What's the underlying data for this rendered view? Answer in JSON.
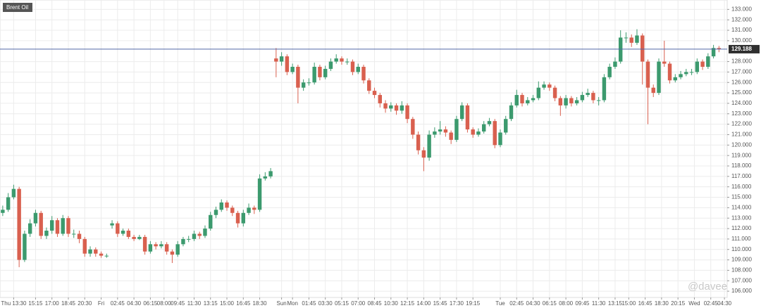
{
  "chart_data": {
    "type": "candlestick",
    "title": "Brent Oil",
    "watermark": "@davee",
    "up_color": "#3c9a6e",
    "down_color": "#d9604f",
    "last_price": 129.188,
    "last_price_color": "#5066a6",
    "grid": true,
    "ylim": [
      105.4,
      133.9
    ],
    "yticks": [
      {
        "value": 106,
        "label": "106.000"
      },
      {
        "value": 107,
        "label": "107.000"
      },
      {
        "value": 108,
        "label": "108.000"
      },
      {
        "value": 109,
        "label": "109.000"
      },
      {
        "value": 110,
        "label": "110.000"
      },
      {
        "value": 111,
        "label": "111.000"
      },
      {
        "value": 112,
        "label": "112.000"
      },
      {
        "value": 113,
        "label": "113.000"
      },
      {
        "value": 114,
        "label": "114.000"
      },
      {
        "value": 115,
        "label": "115.000"
      },
      {
        "value": 116,
        "label": "116.000"
      },
      {
        "value": 117,
        "label": "117.000"
      },
      {
        "value": 118,
        "label": "118.000"
      },
      {
        "value": 119,
        "label": "119.000"
      },
      {
        "value": 120,
        "label": "120.000"
      },
      {
        "value": 121,
        "label": "121.000"
      },
      {
        "value": 122,
        "label": "122.000"
      },
      {
        "value": 123,
        "label": "123.000"
      },
      {
        "value": 124,
        "label": "124.000"
      },
      {
        "value": 125,
        "label": "125.000"
      },
      {
        "value": 126,
        "label": "126.000"
      },
      {
        "value": 127,
        "label": "127.000"
      },
      {
        "value": 128,
        "label": "128.000"
      },
      {
        "value": 130,
        "label": "130.000"
      },
      {
        "value": 131,
        "label": "131.000"
      },
      {
        "value": 132,
        "label": "132.000"
      },
      {
        "value": 133,
        "label": "133.000"
      }
    ],
    "xlim": [
      -0.5,
      132.5
    ],
    "xticks": [
      {
        "value": 2,
        "label": "Thu 13:30"
      },
      {
        "value": 6,
        "label": "15:15"
      },
      {
        "value": 9,
        "label": "17:00"
      },
      {
        "value": 12,
        "label": "18:45"
      },
      {
        "value": 15,
        "label": "20:30"
      },
      {
        "value": 18,
        "label": "Fri"
      },
      {
        "value": 21,
        "label": "02:45"
      },
      {
        "value": 24,
        "label": "04:30"
      },
      {
        "value": 27,
        "label": "06:15"
      },
      {
        "value": 29.5,
        "label": "08:00"
      },
      {
        "value": 32,
        "label": "09:45"
      },
      {
        "value": 35,
        "label": "11:30"
      },
      {
        "value": 38,
        "label": "13:15"
      },
      {
        "value": 41,
        "label": "15:00"
      },
      {
        "value": 44,
        "label": "16:45"
      },
      {
        "value": 47,
        "label": "18:30"
      },
      {
        "value": 51,
        "label": "Sun"
      },
      {
        "value": 53,
        "label": "Mon"
      },
      {
        "value": 56,
        "label": "01:45"
      },
      {
        "value": 59,
        "label": "03:30"
      },
      {
        "value": 62,
        "label": "05:15"
      },
      {
        "value": 65,
        "label": "07:00"
      },
      {
        "value": 68,
        "label": "08:45"
      },
      {
        "value": 71,
        "label": "10:30"
      },
      {
        "value": 74,
        "label": "12:15"
      },
      {
        "value": 77,
        "label": "14:00"
      },
      {
        "value": 80,
        "label": "15:45"
      },
      {
        "value": 83,
        "label": "17:30"
      },
      {
        "value": 86,
        "label": "19:15"
      },
      {
        "value": 91,
        "label": "Tue"
      },
      {
        "value": 94,
        "label": "02:45"
      },
      {
        "value": 97,
        "label": "04:30"
      },
      {
        "value": 100,
        "label": "06:15"
      },
      {
        "value": 103,
        "label": "08:00"
      },
      {
        "value": 106,
        "label": "09:45"
      },
      {
        "value": 109,
        "label": "11:30"
      },
      {
        "value": 112,
        "label": "13:15"
      },
      {
        "value": 114.5,
        "label": "15:00"
      },
      {
        "value": 117.5,
        "label": "16:45"
      },
      {
        "value": 120.5,
        "label": "18:30"
      },
      {
        "value": 123.5,
        "label": "20:15"
      },
      {
        "value": 126.5,
        "label": "Wed"
      },
      {
        "value": 129.5,
        "label": "02:45"
      },
      {
        "value": 132,
        "label": "04:30"
      }
    ],
    "open": [
      113.5,
      113.8,
      115,
      115.8,
      109,
      111.5,
      112.5,
      113.5,
      111.3,
      111.8,
      112.8,
      111.5,
      113,
      111.5,
      111.5,
      111,
      109.6,
      110,
      109.6,
      109.4,
      112.3,
      112.5,
      111.5,
      111.8,
      111.2,
      111,
      111.2,
      109.8,
      110.5,
      110.3,
      110.5,
      109.8,
      109.5,
      110.5,
      111,
      111,
      111.5,
      111.3,
      112,
      113.3,
      113.8,
      114.5,
      114,
      113.5,
      112.5,
      113.5,
      114,
      113.8,
      116.8,
      117,
      128.3,
      128,
      128.5,
      127,
      127.5,
      125.5,
      126,
      126,
      127.5,
      126.5,
      127.3,
      128,
      128.3,
      128,
      128,
      127,
      127.5,
      126.2,
      125.2,
      124.8,
      124,
      123.5,
      123.8,
      123.3,
      123.8,
      122.5,
      121,
      119.5,
      118.8,
      121,
      121.3,
      121.5,
      121.2,
      120.5,
      122.5,
      123.8,
      121.5,
      121,
      121.3,
      122,
      122.3,
      120,
      121.2,
      122.5,
      123.8,
      124.8,
      124,
      124.3,
      124.5,
      125.5,
      125.8,
      125.5,
      124.5,
      123.8,
      124.5,
      124,
      124.3,
      124.8,
      125,
      124.3,
      124.3,
      126.5,
      127.5,
      128,
      130.3,
      130.3,
      129.8,
      130.5,
      128,
      125.5,
      125,
      128,
      127.8,
      126.2,
      126.5,
      126.8,
      127,
      127,
      128,
      127.5,
      128.5,
      129.3
    ],
    "high": [
      114.2,
      115.4,
      116.2,
      116,
      111.8,
      112.9,
      113.8,
      113.7,
      112.1,
      113.2,
      113,
      113.3,
      113.2,
      111.9,
      111.8,
      111.2,
      110.3,
      110.2,
      109.8,
      109.6,
      112.8,
      112.7,
      112,
      112,
      111.4,
      111.4,
      111.4,
      110.8,
      110.7,
      110.8,
      110.7,
      110,
      110.8,
      111.2,
      111.3,
      111.8,
      111.7,
      112.3,
      113.6,
      114.1,
      114.8,
      114.7,
      114.2,
      113.7,
      113.8,
      114.4,
      114.2,
      117.2,
      117.4,
      117.8,
      129.3,
      128.9,
      128.7,
      127.8,
      127.7,
      126.3,
      126.4,
      127.9,
      127.7,
      127.6,
      128.3,
      128.7,
      128.5,
      128.3,
      128.2,
      127.8,
      127.7,
      126.4,
      125.5,
      125,
      124.3,
      124.1,
      124,
      124.2,
      124,
      122.7,
      121.3,
      119.8,
      121.4,
      121.7,
      122.3,
      121.8,
      121.4,
      122.8,
      124.1,
      124,
      121.7,
      121.6,
      122.3,
      122.6,
      122.5,
      121.5,
      122.8,
      124.1,
      125.3,
      125,
      124.6,
      124.8,
      126.1,
      126.1,
      126,
      125.7,
      124.7,
      124.8,
      124.7,
      124.6,
      125.1,
      125.4,
      125.2,
      124.6,
      126.8,
      127.8,
      128.4,
      131,
      130.8,
      130.6,
      131.1,
      130.7,
      128.2,
      125.8,
      128.3,
      130,
      128,
      126.8,
      127.1,
      127.3,
      127.3,
      128.3,
      128.2,
      128.8,
      129.6,
      129.5
    ],
    "low": [
      113.2,
      113.6,
      114.8,
      108.3,
      108.8,
      111.2,
      112.2,
      111,
      111,
      111.5,
      111.2,
      111.3,
      111.2,
      111.1,
      110.6,
      109.3,
      109.3,
      109.3,
      109.2,
      109.2,
      112,
      111.2,
      111.3,
      111,
      110.8,
      110.9,
      109.5,
      109.6,
      110,
      110.1,
      109.5,
      108.7,
      109.3,
      110.3,
      110.7,
      110.8,
      111,
      111.1,
      111.8,
      113,
      113.6,
      113.7,
      113.2,
      112.1,
      112.2,
      113.3,
      113.4,
      113.6,
      116.6,
      116.8,
      126.5,
      127.6,
      126.7,
      126.8,
      124,
      125.2,
      125.7,
      125.8,
      126.2,
      126.3,
      127.1,
      127.8,
      127.7,
      127.7,
      126.7,
      126.8,
      125.9,
      124.9,
      124.5,
      123.6,
      123.1,
      123.2,
      122.9,
      123,
      122.1,
      120.6,
      119.1,
      117.5,
      118.5,
      120.7,
      121,
      120.8,
      120.1,
      120.3,
      122.3,
      121.2,
      120.7,
      120.8,
      121.1,
      121.8,
      119.7,
      119.8,
      121,
      122.3,
      123.6,
      123.7,
      123.8,
      124.1,
      124.3,
      125.3,
      125.2,
      124.2,
      122.8,
      123.5,
      123.7,
      123.8,
      124.1,
      124.6,
      124,
      123.8,
      124.1,
      126.3,
      127.3,
      127.8,
      129.8,
      129.4,
      129.6,
      125.8,
      122,
      124.6,
      124.8,
      127.5,
      125.9,
      126,
      126.3,
      126.6,
      126.7,
      126.8,
      127.2,
      127.3,
      128.3,
      128.9
    ],
    "close": [
      113.8,
      115,
      115.8,
      109,
      111.5,
      112.5,
      113.5,
      111.3,
      111.8,
      112.8,
      111.5,
      113,
      111.5,
      111.5,
      111,
      109.6,
      110,
      109.6,
      109.4,
      109.4,
      112.5,
      111.5,
      111.8,
      111.2,
      111,
      111.2,
      109.8,
      110.5,
      110.3,
      110.5,
      109.8,
      109.5,
      110.5,
      111,
      111,
      111.5,
      111.3,
      112,
      113.3,
      113.8,
      114.5,
      114,
      113.5,
      112.5,
      113.5,
      114,
      113.8,
      116.8,
      117,
      117.5,
      128,
      128.5,
      127,
      127.5,
      125.5,
      126,
      126,
      127.5,
      126.5,
      127.3,
      128,
      128.3,
      128,
      128,
      127,
      127.5,
      126.2,
      125.2,
      124.8,
      124,
      123.5,
      123.8,
      123.3,
      123.8,
      122.5,
      121,
      119.5,
      118.8,
      121,
      121.3,
      121.5,
      121.2,
      120.5,
      122.5,
      123.8,
      121.5,
      121,
      121.3,
      122,
      122.3,
      120,
      121.2,
      122.5,
      123.8,
      124.8,
      124,
      124.3,
      124.5,
      125.5,
      125.8,
      125.5,
      124.5,
      123.8,
      124.5,
      124,
      124.3,
      124.8,
      125,
      124.3,
      124.3,
      126.5,
      127.5,
      128,
      130.3,
      130.3,
      129.8,
      130.5,
      128,
      125.5,
      125,
      128,
      127.8,
      126.2,
      126.5,
      126.8,
      127,
      127,
      128,
      127.5,
      128.5,
      129.3,
      129.2
    ]
  }
}
